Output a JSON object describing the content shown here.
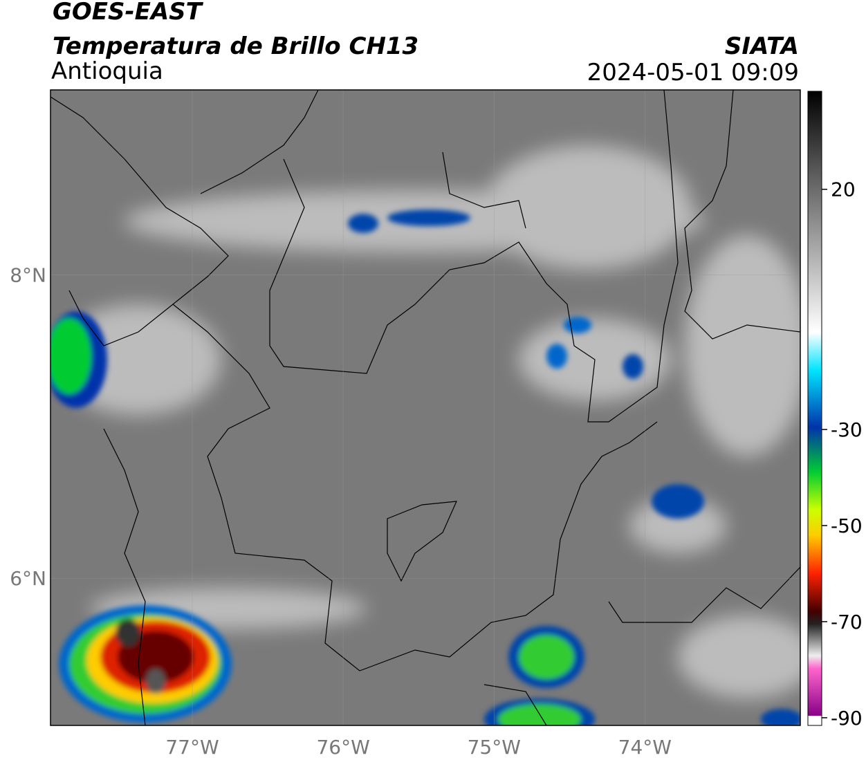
{
  "header": {
    "title": "GOES-EAST",
    "subtitle": "Temperatura de Brillo CH13",
    "region": "Antioquia",
    "source": "SIATA",
    "datetime": "2024-05-01 09:09"
  },
  "map": {
    "xlim": [
      -77.94,
      -72.97
    ],
    "ylim": [
      5.03,
      9.22
    ],
    "xticks": [
      {
        "value": -77,
        "label": "77°W"
      },
      {
        "value": -76,
        "label": "76°W"
      },
      {
        "value": -75,
        "label": "75°W"
      },
      {
        "value": -74,
        "label": "74°W"
      }
    ],
    "yticks": [
      {
        "value": 8,
        "label": "8°N"
      },
      {
        "value": 6,
        "label": "6°N"
      }
    ]
  },
  "colorbar": {
    "lim": [
      -91.6,
      40.4
    ],
    "ticks": [
      20,
      -30,
      -50,
      -70,
      -90
    ]
  }
}
